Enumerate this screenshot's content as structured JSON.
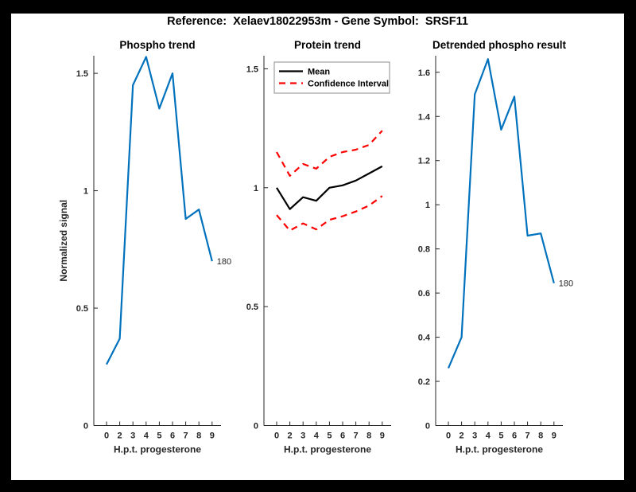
{
  "window": {
    "background": "#000000",
    "canvas_background": "#ffffff"
  },
  "header": {
    "title": "Reference:  Xelaev18022953m - Gene Symbol:  SRSF11"
  },
  "colors": {
    "line_blue": "#0072BD",
    "mean_black": "#000000",
    "ci_red": "#FF0000",
    "axis_gray": "#262626",
    "legend_border_gray": "#8C8C8C"
  },
  "chart_data": [
    {
      "type": "line",
      "title": "Phospho trend",
      "xlabel": "H.p.t. progesterone",
      "ylabel": "Normalized signal",
      "categories": [
        0,
        2,
        3,
        4,
        5,
        6,
        7,
        8,
        9
      ],
      "xtick_labels": [
        "0",
        "2",
        "3",
        "4",
        "5",
        "6",
        "7",
        "8",
        "9"
      ],
      "ylim": [
        0,
        1.575
      ],
      "yticks": [
        0,
        0.5,
        1,
        1.5
      ],
      "ytick_labels": [
        "0",
        "0.5",
        "1",
        "1.5"
      ],
      "grid": false,
      "series": [
        {
          "name": "phospho-signal",
          "color": "#0072BD",
          "dash": "solid",
          "values": [
            0.26,
            0.37,
            1.45,
            1.57,
            1.35,
            1.5,
            0.88,
            0.92,
            0.7
          ]
        }
      ],
      "end_annotation": "180"
    },
    {
      "type": "line",
      "title": "Protein trend",
      "xlabel": "H.p.t. progesterone",
      "ylabel": "",
      "categories": [
        0,
        2,
        3,
        4,
        5,
        6,
        7,
        8,
        9
      ],
      "xtick_labels": [
        "0",
        "2",
        "3",
        "4",
        "5",
        "6",
        "7",
        "8",
        "9"
      ],
      "ylim": [
        0,
        1.555
      ],
      "yticks": [
        0,
        0.5,
        1,
        1.5
      ],
      "ytick_labels": [
        "0",
        "0.5",
        "1",
        "1.5"
      ],
      "grid": false,
      "series": [
        {
          "name": "mean",
          "color": "#000000",
          "dash": "solid",
          "values": [
            1.0,
            0.91,
            0.96,
            0.945,
            1.0,
            1.01,
            1.03,
            1.06,
            1.09
          ]
        },
        {
          "name": "confidence-upper",
          "color": "#FF0000",
          "dash": "dashed",
          "values": [
            1.15,
            1.05,
            1.1,
            1.08,
            1.13,
            1.15,
            1.16,
            1.18,
            1.24
          ]
        },
        {
          "name": "confidence-lower",
          "color": "#FF0000",
          "dash": "dashed",
          "values": [
            0.885,
            0.82,
            0.85,
            0.825,
            0.865,
            0.88,
            0.9,
            0.925,
            0.965
          ]
        }
      ],
      "legend": {
        "position": "northwest",
        "entries": [
          {
            "label": "Mean",
            "color": "#000000",
            "dash": "solid"
          },
          {
            "label": "Confidence Interval",
            "color": "#FF0000",
            "dash": "dashed"
          }
        ]
      }
    },
    {
      "type": "line",
      "title": "Detrended phospho result",
      "xlabel": "H.p.t. progesterone",
      "ylabel": "",
      "categories": [
        0,
        2,
        3,
        4,
        5,
        6,
        7,
        8,
        9
      ],
      "xtick_labels": [
        "0",
        "2",
        "3",
        "4",
        "5",
        "6",
        "7",
        "8",
        "9"
      ],
      "ylim": [
        0,
        1.675
      ],
      "yticks": [
        0,
        0.2,
        0.4,
        0.6,
        0.8,
        1,
        1.2,
        1.4,
        1.6
      ],
      "ytick_labels": [
        "0",
        "0.2",
        "0.4",
        "0.6",
        "0.8",
        "1",
        "1.2",
        "1.4",
        "1.6"
      ],
      "grid": false,
      "series": [
        {
          "name": "detrended-phospho-signal",
          "color": "#0072BD",
          "dash": "solid",
          "values": [
            0.26,
            0.4,
            1.5,
            1.66,
            1.34,
            1.49,
            0.86,
            0.87,
            0.645
          ]
        }
      ],
      "end_annotation": "180"
    }
  ]
}
